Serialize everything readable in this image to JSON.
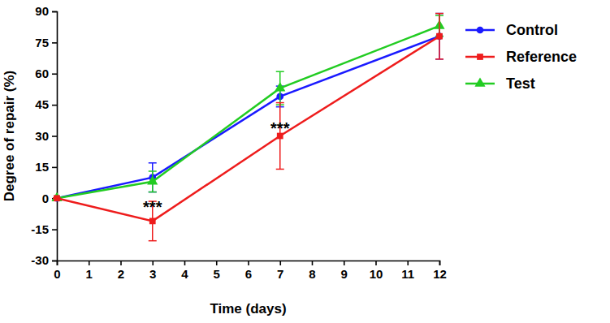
{
  "chart_data": {
    "type": "line",
    "x_label": "Time (days)",
    "y_label": "Degree of repair (%)",
    "x": [
      0,
      3,
      7,
      12
    ],
    "series": [
      {
        "name": "Control",
        "color": "#1a1aff",
        "marker": "circle",
        "values": [
          0,
          10,
          49,
          78
        ],
        "errors": [
          0,
          7,
          5,
          11
        ]
      },
      {
        "name": "Reference",
        "color": "#ee1c1c",
        "marker": "square",
        "values": [
          0,
          -11,
          30,
          78
        ],
        "errors": [
          0,
          9.5,
          16,
          11
        ]
      },
      {
        "name": "Test",
        "color": "#22cc22",
        "marker": "triangle",
        "values": [
          0,
          8,
          53,
          83
        ],
        "errors": [
          0,
          5,
          8,
          5
        ]
      }
    ],
    "annotations": [
      {
        "text": "***",
        "x": 3,
        "y": -4
      },
      {
        "text": "***",
        "x": 7,
        "y": 34
      }
    ],
    "xlim": [
      0,
      12
    ],
    "xticks": [
      0,
      1,
      2,
      3,
      4,
      5,
      6,
      7,
      8,
      9,
      10,
      11,
      12
    ],
    "ylim": [
      -30,
      90
    ],
    "yticks": [
      -30,
      -15,
      0,
      15,
      30,
      45,
      60,
      75,
      90
    ],
    "grid": false,
    "legend": "upper right"
  }
}
